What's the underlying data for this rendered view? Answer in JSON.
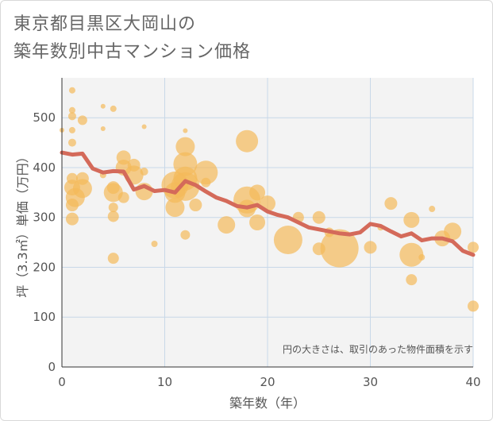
{
  "title": {
    "line1": "東京都目黒区大岡山の",
    "line2": "築年数別中古マンション価格"
  },
  "chart_data": {
    "type": "scatter",
    "xlabel": "築年数（年）",
    "ylabel": "坪（3.3㎡）単価（万円）",
    "xlim": [
      0,
      40
    ],
    "ylim": [
      0,
      580
    ],
    "xticks": [
      0,
      10,
      20,
      30,
      40
    ],
    "yticks": [
      0,
      100,
      200,
      300,
      400,
      500
    ],
    "grid": true,
    "note": "円の大きさは、取引のあった物件面積を示す",
    "colors": {
      "bubble": "#f4b95a",
      "line": "#d46a5a",
      "grid": "#c8d8e8",
      "plot_bg": "#f3f3f3"
    },
    "bubbles": [
      {
        "x": 0,
        "y": 475,
        "s": 3
      },
      {
        "x": 1,
        "y": 555,
        "s": 4
      },
      {
        "x": 1,
        "y": 515,
        "s": 4
      },
      {
        "x": 1,
        "y": 503,
        "s": 5
      },
      {
        "x": 1,
        "y": 475,
        "s": 4
      },
      {
        "x": 1,
        "y": 450,
        "s": 5
      },
      {
        "x": 2,
        "y": 495,
        "s": 6
      },
      {
        "x": 1,
        "y": 378,
        "s": 7
      },
      {
        "x": 1,
        "y": 360,
        "s": 10
      },
      {
        "x": 1.3,
        "y": 340,
        "s": 12
      },
      {
        "x": 1,
        "y": 325,
        "s": 8
      },
      {
        "x": 1,
        "y": 297,
        "s": 8
      },
      {
        "x": 2,
        "y": 378,
        "s": 8
      },
      {
        "x": 2,
        "y": 358,
        "s": 12
      },
      {
        "x": 4,
        "y": 523,
        "s": 3
      },
      {
        "x": 5,
        "y": 518,
        "s": 4
      },
      {
        "x": 4,
        "y": 478,
        "s": 3
      },
      {
        "x": 4,
        "y": 385,
        "s": 4
      },
      {
        "x": 5,
        "y": 360,
        "s": 8
      },
      {
        "x": 5,
        "y": 350,
        "s": 12
      },
      {
        "x": 5,
        "y": 320,
        "s": 6
      },
      {
        "x": 5,
        "y": 302,
        "s": 7
      },
      {
        "x": 5,
        "y": 218,
        "s": 7
      },
      {
        "x": 6,
        "y": 420,
        "s": 9
      },
      {
        "x": 6,
        "y": 400,
        "s": 10
      },
      {
        "x": 6,
        "y": 340,
        "s": 7
      },
      {
        "x": 7,
        "y": 405,
        "s": 8
      },
      {
        "x": 7,
        "y": 385,
        "s": 12
      },
      {
        "x": 8,
        "y": 482,
        "s": 3
      },
      {
        "x": 8,
        "y": 392,
        "s": 5
      },
      {
        "x": 8,
        "y": 352,
        "s": 11
      },
      {
        "x": 9,
        "y": 247,
        "s": 4
      },
      {
        "x": 11,
        "y": 365,
        "s": 17
      },
      {
        "x": 11,
        "y": 350,
        "s": 13
      },
      {
        "x": 11,
        "y": 320,
        "s": 12
      },
      {
        "x": 12,
        "y": 474,
        "s": 3
      },
      {
        "x": 12,
        "y": 442,
        "s": 12
      },
      {
        "x": 12,
        "y": 407,
        "s": 15
      },
      {
        "x": 12,
        "y": 378,
        "s": 15
      },
      {
        "x": 12,
        "y": 362,
        "s": 18
      },
      {
        "x": 12,
        "y": 265,
        "s": 6
      },
      {
        "x": 13,
        "y": 325,
        "s": 8
      },
      {
        "x": 14,
        "y": 390,
        "s": 15
      },
      {
        "x": 14,
        "y": 370,
        "s": 6
      },
      {
        "x": 16,
        "y": 285,
        "s": 11
      },
      {
        "x": 18,
        "y": 453,
        "s": 14
      },
      {
        "x": 18,
        "y": 335,
        "s": 17
      },
      {
        "x": 18,
        "y": 318,
        "s": 11
      },
      {
        "x": 19,
        "y": 350,
        "s": 10
      },
      {
        "x": 19,
        "y": 290,
        "s": 10
      },
      {
        "x": 20,
        "y": 328,
        "s": 10
      },
      {
        "x": 22,
        "y": 255,
        "s": 18
      },
      {
        "x": 23,
        "y": 300,
        "s": 7
      },
      {
        "x": 25,
        "y": 300,
        "s": 8
      },
      {
        "x": 25,
        "y": 237,
        "s": 8
      },
      {
        "x": 26,
        "y": 270,
        "s": 6
      },
      {
        "x": 27,
        "y": 238,
        "s": 24
      },
      {
        "x": 30,
        "y": 240,
        "s": 8
      },
      {
        "x": 31,
        "y": 280,
        "s": 4
      },
      {
        "x": 32,
        "y": 328,
        "s": 8
      },
      {
        "x": 34,
        "y": 295,
        "s": 10
      },
      {
        "x": 34,
        "y": 225,
        "s": 15
      },
      {
        "x": 34,
        "y": 175,
        "s": 7
      },
      {
        "x": 35,
        "y": 220,
        "s": 4
      },
      {
        "x": 36,
        "y": 317,
        "s": 4
      },
      {
        "x": 37,
        "y": 258,
        "s": 10
      },
      {
        "x": 38,
        "y": 272,
        "s": 11
      },
      {
        "x": 40,
        "y": 240,
        "s": 7
      },
      {
        "x": 40,
        "y": 122,
        "s": 7
      }
    ],
    "trend": {
      "x": [
        0,
        1,
        2,
        3,
        4,
        5,
        6,
        7,
        8,
        9,
        10,
        11,
        12,
        13,
        14,
        15,
        16,
        17,
        18,
        19,
        20,
        21,
        22,
        23,
        24,
        25,
        26,
        27,
        28,
        29,
        30,
        31,
        32,
        33,
        34,
        35,
        36,
        37,
        38,
        39,
        40
      ],
      "y": [
        430,
        426,
        428,
        398,
        390,
        393,
        392,
        356,
        363,
        353,
        355,
        350,
        373,
        365,
        352,
        340,
        333,
        323,
        320,
        325,
        312,
        305,
        300,
        290,
        280,
        276,
        272,
        268,
        266,
        270,
        287,
        283,
        272,
        262,
        268,
        254,
        258,
        258,
        252,
        233,
        225
      ]
    }
  }
}
